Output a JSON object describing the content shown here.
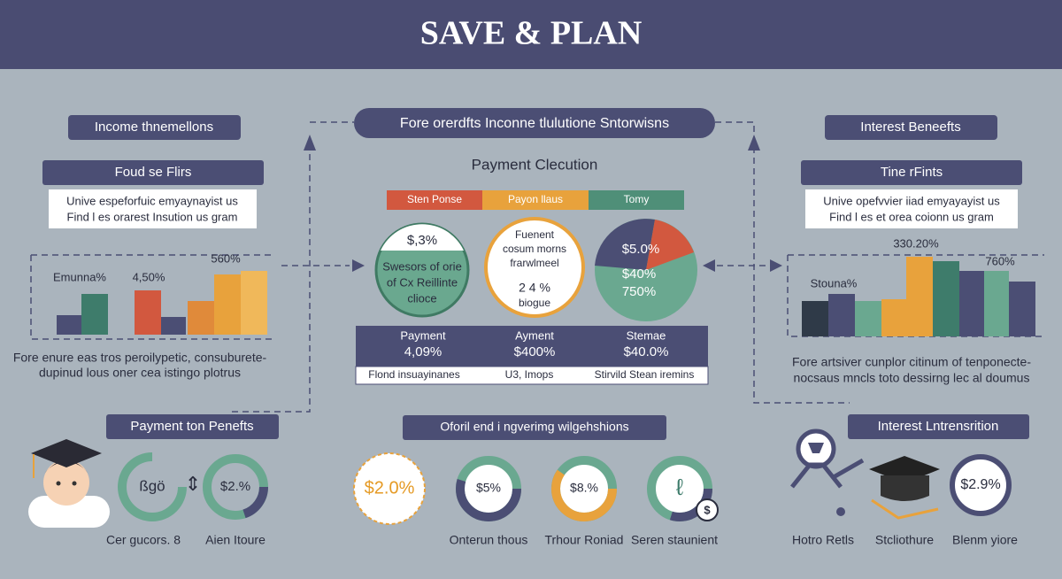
{
  "header": {
    "title": "SAVE & PLAN"
  },
  "left": {
    "pill": "Income thnemellons",
    "subpill": "Foud se Flirs",
    "box_lines": [
      "Unive espeforfuic emyaynayist us",
      "Find l es orarest Insution us gram"
    ],
    "chart_labels": [
      "Emunna%",
      "4,50%",
      "560%"
    ],
    "paragraph": [
      "Fore enure eas tros peroilypetic, consuburete-",
      "dupinud lous oner cea istingo plotrus"
    ],
    "bottom_pill": "Payment ton Penefts",
    "rings": [
      {
        "value": "ßgö",
        "label": "Cer gucors. 8"
      },
      {
        "value": "$2.%",
        "label": "Aien Itoure"
      }
    ]
  },
  "center": {
    "pill": "Fore orerdfts Inconne tlulutione Sntorwisns",
    "heading": "Payment Clecution",
    "legend": [
      "Sten Ponse",
      "Payon llaus",
      "Tomy"
    ],
    "circle_left": {
      "value": "$,3%",
      "lines": [
        "Swesors of orie",
        "of Cx Reillinte",
        "clioce"
      ]
    },
    "circle_middle": {
      "lines": [
        "Fuenent",
        "cosum morns",
        "frarwlmeel"
      ],
      "value": "2 4 %",
      "caption": "biogue"
    },
    "pie_labels": [
      "$5.0%",
      "$40%",
      "750%"
    ],
    "table": {
      "headers": [
        "Payment",
        "Ayment",
        "Stemae"
      ],
      "values": [
        "4,09%",
        "$400%",
        "$40.0%"
      ],
      "footer": [
        "Flond insuayinanes",
        "U3, Imops",
        "Stirvild Stean iremins"
      ]
    },
    "bottom_pill": "Oforil end i ngverimg wilgehshions",
    "rings": [
      {
        "value": "$2.0%"
      },
      {
        "value": "$5%",
        "label": "Onterun thous"
      },
      {
        "value": "$8.%",
        "label": "Trhour Roniad"
      },
      {
        "label": "Seren staunient"
      }
    ]
  },
  "right": {
    "pill": "Interest Beneefts",
    "subpill": "Tine rFints",
    "box_lines": [
      "Unive opefvvier iiad emyayayist us",
      "Find l es et orea coionn us gram"
    ],
    "chart_labels": [
      "330.20%",
      "Stouna%",
      "760%"
    ],
    "paragraph": [
      "Fore artsiver cunplor citinum of tenponecte-",
      "nocsaus mncls toto dessirng lec al doumus"
    ],
    "bottom_pill": "Interest Lntrensrition",
    "ring_value": "$2.9%",
    "labels": [
      "Hotro Retls",
      "Stcliothure",
      "Blenm yiore"
    ]
  }
}
